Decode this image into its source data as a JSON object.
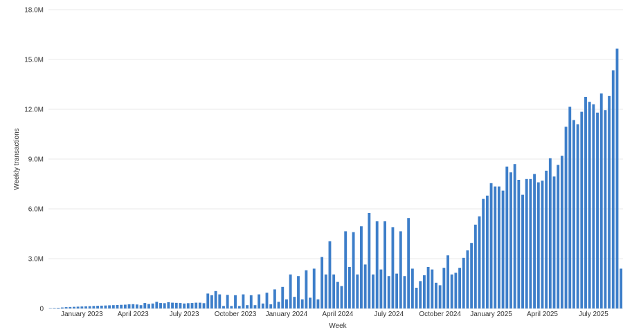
{
  "chart_data": {
    "type": "bar",
    "xlabel": "Week",
    "ylabel": "Weekly transactions",
    "ylim": [
      0,
      18000000
    ],
    "y_ticks": [
      {
        "value": 0,
        "label": "0"
      },
      {
        "value": 3000000,
        "label": "3.0M"
      },
      {
        "value": 6000000,
        "label": "6.0M"
      },
      {
        "value": 9000000,
        "label": "9.0M"
      },
      {
        "value": 12000000,
        "label": "12.0M"
      },
      {
        "value": 15000000,
        "label": "15.0M"
      },
      {
        "value": 18000000,
        "label": "18.0M"
      }
    ],
    "x_ticks": [
      {
        "index": 8,
        "label": "January 2023"
      },
      {
        "index": 21,
        "label": "April 2023"
      },
      {
        "index": 34,
        "label": "July 2023"
      },
      {
        "index": 47,
        "label": "October 2023"
      },
      {
        "index": 60,
        "label": "January 2024"
      },
      {
        "index": 73,
        "label": "April 2024"
      },
      {
        "index": 86,
        "label": "July 2024"
      },
      {
        "index": 99,
        "label": "October 2024"
      },
      {
        "index": 112,
        "label": "January 2025"
      },
      {
        "index": 125,
        "label": "April 2025"
      },
      {
        "index": 138,
        "label": "July 2025"
      }
    ],
    "grid": true,
    "legend": "none",
    "bar_color": "#3d7ec9",
    "values": [
      20000,
      30000,
      40000,
      60000,
      80000,
      90000,
      100000,
      110000,
      120000,
      130000,
      140000,
      150000,
      160000,
      170000,
      180000,
      190000,
      200000,
      210000,
      220000,
      230000,
      250000,
      260000,
      240000,
      200000,
      330000,
      270000,
      300000,
      400000,
      330000,
      320000,
      380000,
      350000,
      340000,
      330000,
      300000,
      320000,
      330000,
      350000,
      350000,
      320000,
      900000,
      800000,
      1050000,
      850000,
      150000,
      820000,
      150000,
      800000,
      150000,
      850000,
      200000,
      800000,
      200000,
      850000,
      300000,
      950000,
      250000,
      1150000,
      400000,
      1300000,
      550000,
      2050000,
      700000,
      1950000,
      550000,
      2300000,
      650000,
      2400000,
      550000,
      3100000,
      2050000,
      4050000,
      2050000,
      1600000,
      1350000,
      4650000,
      2500000,
      4600000,
      2050000,
      4950000,
      2650000,
      5750000,
      2050000,
      5250000,
      2350000,
      5250000,
      1950000,
      4900000,
      2100000,
      4650000,
      1950000,
      5450000,
      2400000,
      1250000,
      1650000,
      2000000,
      2500000,
      2350000,
      1550000,
      1400000,
      2450000,
      3200000,
      2050000,
      2150000,
      2450000,
      3050000,
      3500000,
      3950000,
      5050000,
      5550000,
      6600000,
      6800000,
      7550000,
      7350000,
      7350000,
      7100000,
      8550000,
      8200000,
      8700000,
      7750000,
      6850000,
      7800000,
      7800000,
      8100000,
      7600000,
      7700000,
      8300000,
      9050000,
      7950000,
      8650000,
      9200000,
      10950000,
      12150000,
      11350000,
      11100000,
      11850000,
      12750000,
      12450000,
      12300000,
      11800000,
      12950000,
      11950000,
      12800000,
      14350000,
      15650000,
      2400000
    ]
  }
}
